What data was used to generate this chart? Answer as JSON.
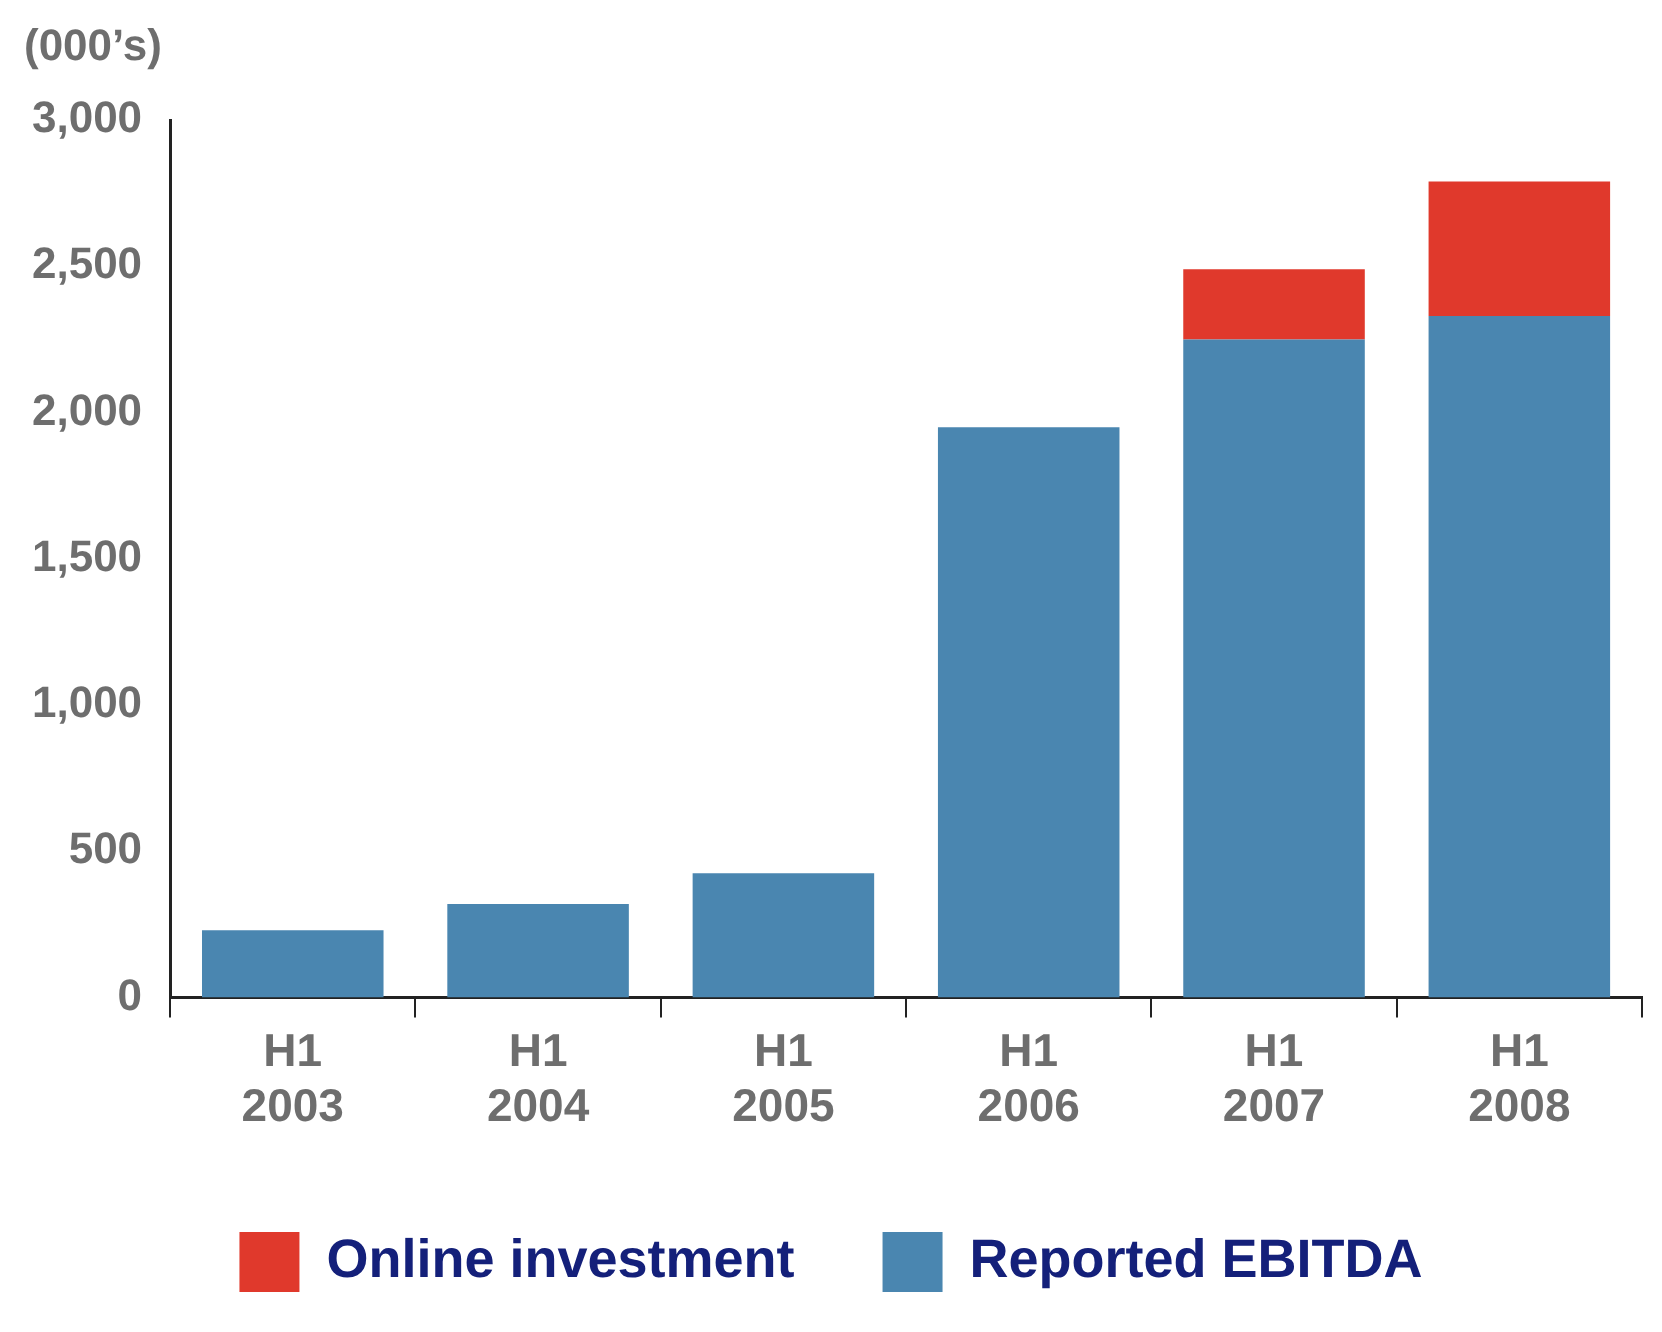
{
  "chart_data": {
    "type": "bar",
    "ylabel": "(000’s)",
    "categories": [
      "H1\n2003",
      "H1\n2004",
      "H1\n2005",
      "H1\n2006",
      "H1\n2007",
      "H1\n2008"
    ],
    "stacked": true,
    "series": [
      {
        "name": "Reported EBITDA",
        "color": "#4a86b0",
        "values": [
          230,
          320,
          425,
          1950,
          2250,
          2330
        ]
      },
      {
        "name": "Online investment",
        "color": "#e0392c",
        "values": [
          null,
          null,
          null,
          null,
          240,
          460
        ]
      }
    ],
    "ylim": [
      0,
      3000
    ],
    "yticks": [
      {
        "value": 0,
        "label": "0"
      },
      {
        "value": 500,
        "label": "500"
      },
      {
        "value": 1000,
        "label": "1,000"
      },
      {
        "value": 1500,
        "label": "1,500"
      },
      {
        "value": 2000,
        "label": "2,000"
      },
      {
        "value": 2500,
        "label": "2,500"
      },
      {
        "value": 3000,
        "label": "3,000"
      }
    ],
    "legend": "bottom"
  }
}
